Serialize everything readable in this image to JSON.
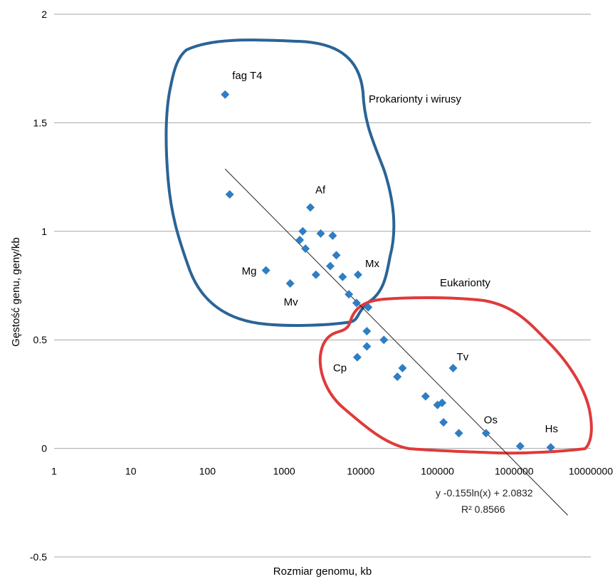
{
  "chart_data": {
    "type": "scatter",
    "title": "",
    "xlabel": "Rozmiar genomu, kb",
    "ylabel": "Gęstość genu, geny/kb",
    "x_scale": "log",
    "xlim": [
      1,
      10000000
    ],
    "ylim": [
      -0.5,
      2
    ],
    "x_tick_labels": [
      "1",
      "10",
      "100",
      "1000",
      "10000",
      "100000",
      "1000000",
      "10000000"
    ],
    "y_tick_labels": [
      "2",
      "1.5",
      "1",
      "0.5",
      "0",
      "-0.5"
    ],
    "grid": "horizontal",
    "marker_color": "#2e7ec4",
    "series": [
      {
        "points": [
          {
            "x": 170,
            "y": 1.63
          },
          {
            "x": 195,
            "y": 1.17
          },
          {
            "x": 580,
            "y": 0.82
          },
          {
            "x": 1200,
            "y": 0.76
          },
          {
            "x": 1600,
            "y": 0.96
          },
          {
            "x": 1750,
            "y": 1.0
          },
          {
            "x": 1900,
            "y": 0.92
          },
          {
            "x": 2200,
            "y": 1.11
          },
          {
            "x": 2600,
            "y": 0.8
          },
          {
            "x": 3000,
            "y": 0.99
          },
          {
            "x": 4000,
            "y": 0.84
          },
          {
            "x": 4300,
            "y": 0.98
          },
          {
            "x": 4800,
            "y": 0.89
          },
          {
            "x": 5800,
            "y": 0.79
          },
          {
            "x": 7000,
            "y": 0.71
          },
          {
            "x": 8800,
            "y": 0.67
          },
          {
            "x": 9200,
            "y": 0.8
          },
          {
            "x": 12000,
            "y": 0.54
          },
          {
            "x": 12500,
            "y": 0.65
          },
          {
            "x": 12000,
            "y": 0.47
          },
          {
            "x": 9000,
            "y": 0.42
          },
          {
            "x": 20000,
            "y": 0.5
          },
          {
            "x": 30000,
            "y": 0.33
          },
          {
            "x": 35000,
            "y": 0.37
          },
          {
            "x": 70000,
            "y": 0.24
          },
          {
            "x": 100000,
            "y": 0.2
          },
          {
            "x": 115000,
            "y": 0.21
          },
          {
            "x": 120000,
            "y": 0.12
          },
          {
            "x": 160000,
            "y": 0.37
          },
          {
            "x": 190000,
            "y": 0.07
          },
          {
            "x": 430000,
            "y": 0.07
          },
          {
            "x": 1200000,
            "y": 0.01
          },
          {
            "x": 3000000,
            "y": 0.005
          }
        ]
      }
    ],
    "trendline": {
      "type": "logarithmic",
      "slope": -0.155,
      "intercept": 2.0832,
      "x_range": [
        170,
        5000000
      ],
      "equation_text": "y   -0.155ln(x) + 2.0832",
      "r2_text": "R²   0.8566"
    },
    "point_labels": [
      {
        "text": "fag T4",
        "x": 170,
        "y": 1.63
      },
      {
        "text": "Af",
        "x": 2200,
        "y": 1.11
      },
      {
        "text": "Mg",
        "x": 580,
        "y": 0.82
      },
      {
        "text": "Mv",
        "x": 1200,
        "y": 0.76
      },
      {
        "text": "Mx",
        "x": 9200,
        "y": 0.8
      },
      {
        "text": "Cp",
        "x": 9000,
        "y": 0.42
      },
      {
        "text": "Tv",
        "x": 160000,
        "y": 0.37
      },
      {
        "text": "Os",
        "x": 430000,
        "y": 0.07
      },
      {
        "text": "Hs",
        "x": 3000000,
        "y": 0.005
      }
    ],
    "group_labels": {
      "prokaryotes": "Prokarionty i wirusy",
      "eukaryotes": "Eukarionty"
    },
    "group_colors": {
      "prokaryotes": "#2a6496",
      "eukaryotes": "#e03a3a"
    }
  }
}
